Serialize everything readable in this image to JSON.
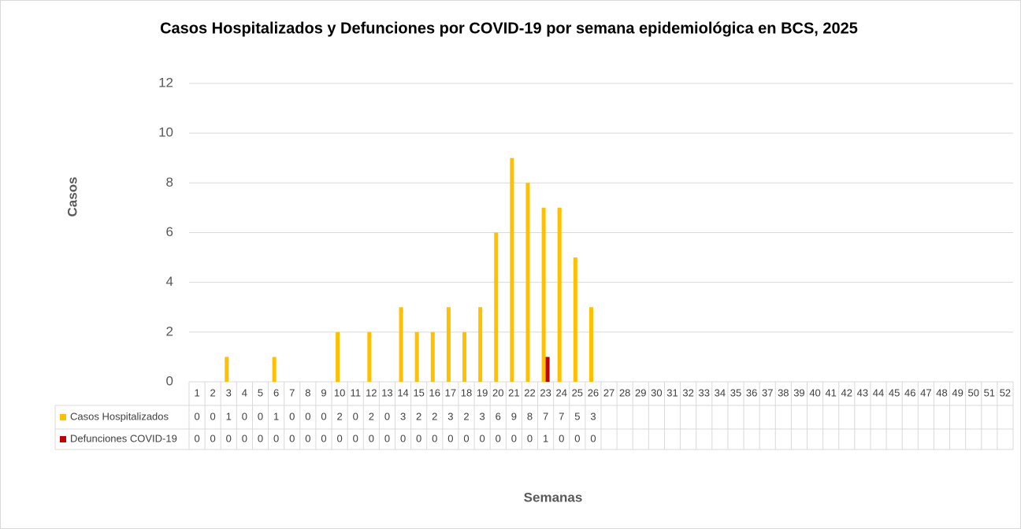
{
  "chart_data": {
    "type": "bar",
    "title": "Casos Hospitalizados y Defunciones por COVID-19 por semana epidemiológica en BCS, 2025",
    "y_label": "Casos",
    "x_label": "Semanas",
    "categories": [
      "1",
      "2",
      "3",
      "4",
      "5",
      "6",
      "7",
      "8",
      "9",
      "10",
      "11",
      "12",
      "13",
      "14",
      "15",
      "16",
      "17",
      "18",
      "19",
      "20",
      "21",
      "22",
      "23",
      "24",
      "25",
      "26",
      "27",
      "28",
      "29",
      "30",
      "31",
      "32",
      "33",
      "34",
      "35",
      "36",
      "37",
      "38",
      "39",
      "40",
      "41",
      "42",
      "43",
      "44",
      "45",
      "46",
      "47",
      "48",
      "49",
      "50",
      "51",
      "52"
    ],
    "series": [
      {
        "name": "Casos Hospitalizados",
        "color": "#ffc000",
        "values": [
          0,
          0,
          1,
          0,
          0,
          1,
          0,
          0,
          0,
          2,
          0,
          2,
          0,
          3,
          2,
          2,
          3,
          2,
          3,
          6,
          9,
          8,
          7,
          7,
          5,
          3,
          null,
          null,
          null,
          null,
          null,
          null,
          null,
          null,
          null,
          null,
          null,
          null,
          null,
          null,
          null,
          null,
          null,
          null,
          null,
          null,
          null,
          null,
          null,
          null,
          null,
          null
        ]
      },
      {
        "name": "Defunciones COVID-19",
        "color": "#c00000",
        "values": [
          0,
          0,
          0,
          0,
          0,
          0,
          0,
          0,
          0,
          0,
          0,
          0,
          0,
          0,
          0,
          0,
          0,
          0,
          0,
          0,
          0,
          0,
          1,
          0,
          0,
          0,
          null,
          null,
          null,
          null,
          null,
          null,
          null,
          null,
          null,
          null,
          null,
          null,
          null,
          null,
          null,
          null,
          null,
          null,
          null,
          null,
          null,
          null,
          null,
          null,
          null,
          null
        ]
      }
    ],
    "ylim": [
      0,
      12
    ],
    "yticks": [
      0,
      2,
      4,
      6,
      8,
      10,
      12
    ],
    "grid": true,
    "data_table": true
  }
}
